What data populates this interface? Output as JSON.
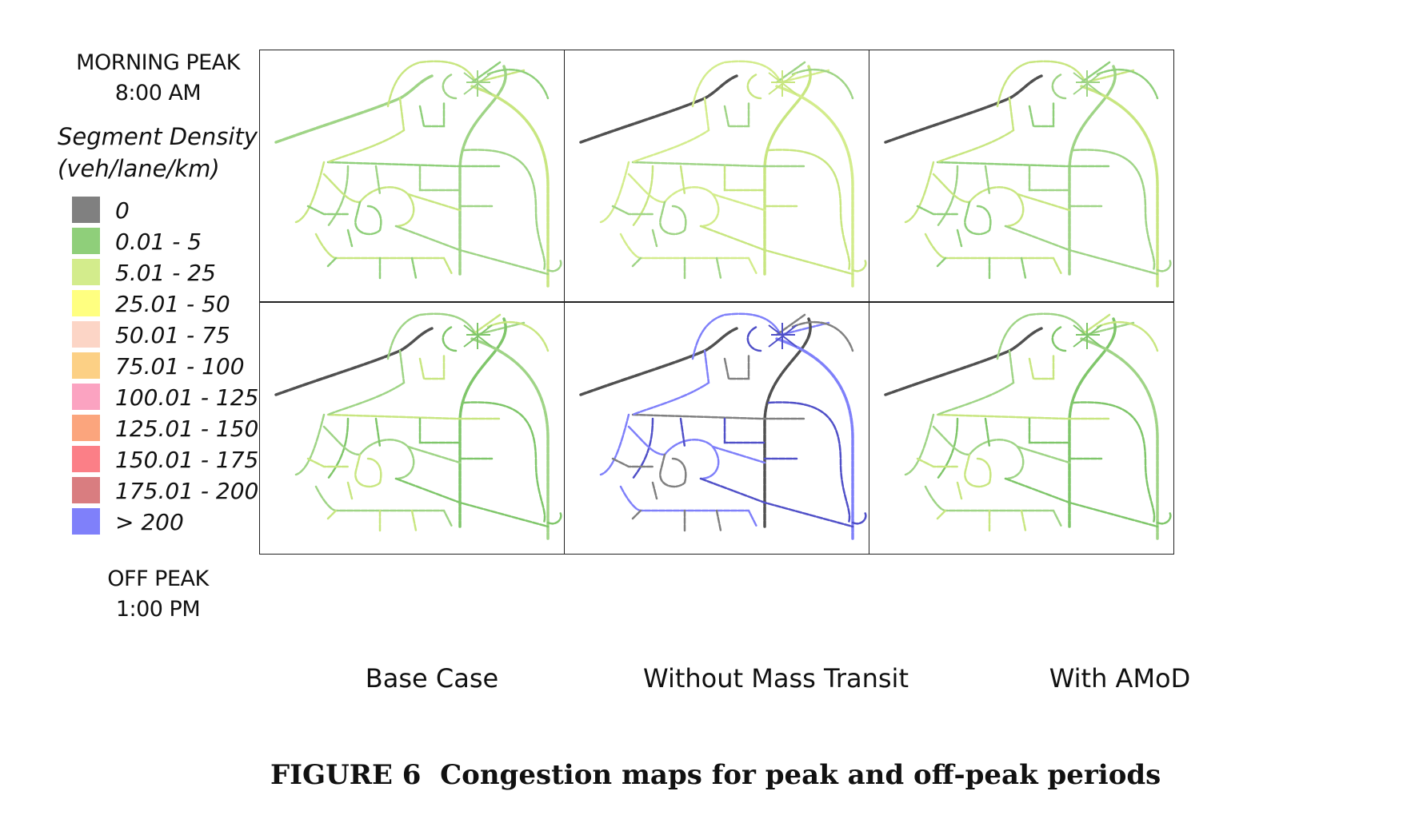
{
  "periods": {
    "morning": [
      "MORNING PEAK",
      "8:00 AM"
    ],
    "off": [
      "OFF PEAK",
      "1:00 PM"
    ]
  },
  "legend": {
    "title": [
      "Segment Density",
      "(veh/lane/km)"
    ],
    "items": [
      {
        "label": "0",
        "color": "#808080"
      },
      {
        "label": "0.01 - 5",
        "color": "#8fcf7a"
      },
      {
        "label": "5.01 - 25",
        "color": "#d3ec8c"
      },
      {
        "label": "25.01 - 50",
        "color": "#ffff80"
      },
      {
        "label": "50.01 - 75",
        "color": "#fcd5c6"
      },
      {
        "label": "75.01 - 100",
        "color": "#fcd085"
      },
      {
        "label": "100.01 - 125",
        "color": "#fba3c1"
      },
      {
        "label": "125.01 - 150",
        "color": "#fba57d"
      },
      {
        "label": "150.01 - 175",
        "color": "#fb7f87"
      },
      {
        "label": "175.01 - 200",
        "color": "#d97d80"
      },
      {
        "label": "> 200",
        "color": "#7f80fa"
      }
    ]
  },
  "columns": [
    "Base Case",
    "Without Mass Transit",
    "With AMoD"
  ],
  "caption": {
    "number": "FIGURE 6",
    "text": "Congestion maps for peak and off-peak periods"
  },
  "panels": [
    {
      "row": "morning",
      "column": "Base Case",
      "palette": [
        "#9fd486",
        "#c8e680",
        "#8fcf7a"
      ]
    },
    {
      "row": "morning",
      "column": "Without Mass Transit",
      "palette": [
        "#c8e680",
        "#d3ec8c",
        "#9fd486"
      ]
    },
    {
      "row": "morning",
      "column": "With AMoD",
      "palette": [
        "#9fd486",
        "#c8e680",
        "#8fcf7a"
      ]
    },
    {
      "row": "off",
      "column": "Base Case",
      "palette": [
        "#7fc66a",
        "#9fd486",
        "#c8e680"
      ]
    },
    {
      "row": "off",
      "column": "Without Mass Transit",
      "palette": [
        "#5050c8",
        "#7f80fa",
        "#808080"
      ]
    },
    {
      "row": "off",
      "column": "With AMoD",
      "palette": [
        "#7fc66a",
        "#9fd486",
        "#c8e680"
      ]
    }
  ]
}
